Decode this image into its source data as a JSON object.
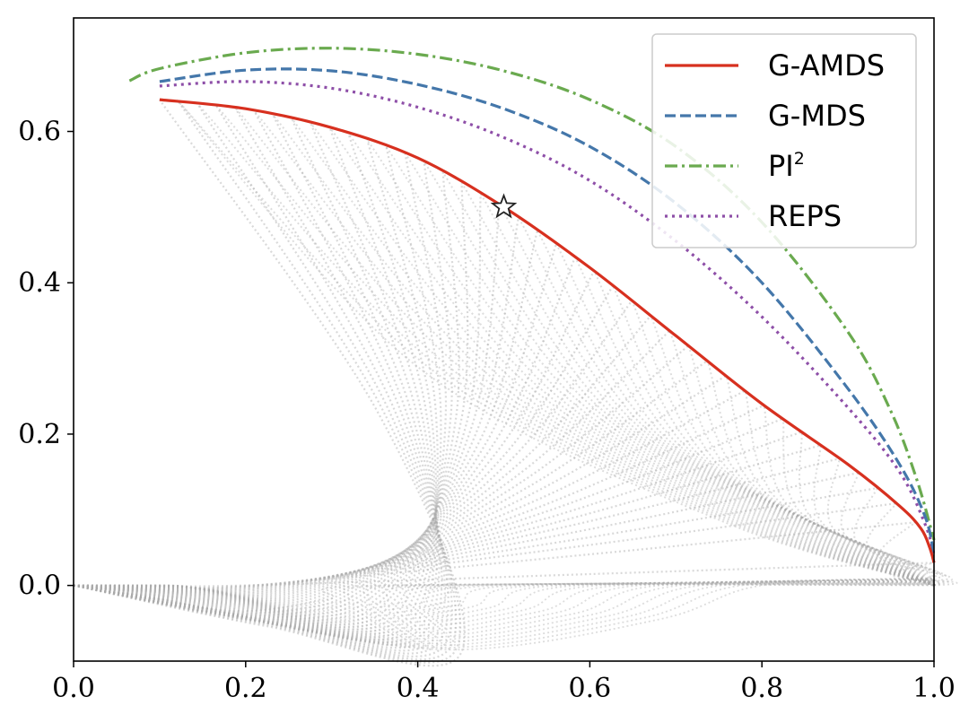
{
  "chart_data": {
    "type": "line",
    "title": "",
    "xlabel": "",
    "ylabel": "",
    "xlim": [
      0.0,
      1.0
    ],
    "ylim": [
      -0.1,
      0.75
    ],
    "x_ticks": [
      "0.0",
      "0.2",
      "0.4",
      "0.6",
      "0.8",
      "1.0"
    ],
    "y_ticks": [
      "0.0",
      "0.2",
      "0.4",
      "0.6"
    ],
    "grid": false,
    "legend_position": "top-right",
    "legend": [
      "G-AMDS",
      "G-MDS",
      "PI",
      "REPS"
    ],
    "legend_superscripts": [
      "",
      "",
      "2",
      ""
    ],
    "series": [
      {
        "name": "G-AMDS",
        "color": "#d7301f",
        "style": "solid",
        "points": [
          [
            0.1,
            0.642
          ],
          [
            0.2,
            0.63
          ],
          [
            0.3,
            0.605
          ],
          [
            0.4,
            0.565
          ],
          [
            0.5,
            0.5
          ],
          [
            0.6,
            0.42
          ],
          [
            0.7,
            0.33
          ],
          [
            0.8,
            0.24
          ],
          [
            0.9,
            0.16
          ],
          [
            0.96,
            0.105
          ],
          [
            0.985,
            0.075
          ],
          [
            0.995,
            0.05
          ],
          [
            1.0,
            0.03
          ]
        ]
      },
      {
        "name": "G-MDS",
        "color": "#4477aa",
        "style": "dashed",
        "points": [
          [
            0.1,
            0.666
          ],
          [
            0.2,
            0.681
          ],
          [
            0.3,
            0.68
          ],
          [
            0.4,
            0.662
          ],
          [
            0.5,
            0.63
          ],
          [
            0.6,
            0.58
          ],
          [
            0.7,
            0.505
          ],
          [
            0.8,
            0.4
          ],
          [
            0.9,
            0.26
          ],
          [
            0.96,
            0.16
          ],
          [
            0.99,
            0.09
          ],
          [
            1.0,
            0.04
          ]
        ]
      },
      {
        "name": "PI",
        "color": "#6aaa4f",
        "style": "dashdot",
        "points": [
          [
            0.065,
            0.667
          ],
          [
            0.1,
            0.683
          ],
          [
            0.2,
            0.704
          ],
          [
            0.3,
            0.71
          ],
          [
            0.4,
            0.702
          ],
          [
            0.5,
            0.68
          ],
          [
            0.6,
            0.642
          ],
          [
            0.7,
            0.58
          ],
          [
            0.8,
            0.48
          ],
          [
            0.9,
            0.335
          ],
          [
            0.95,
            0.23
          ],
          [
            0.98,
            0.14
          ],
          [
            1.0,
            0.06
          ]
        ]
      },
      {
        "name": "REPS",
        "color": "#8e4fa8",
        "style": "dotted",
        "points": [
          [
            0.1,
            0.66
          ],
          [
            0.2,
            0.666
          ],
          [
            0.3,
            0.657
          ],
          [
            0.4,
            0.632
          ],
          [
            0.5,
            0.592
          ],
          [
            0.6,
            0.535
          ],
          [
            0.7,
            0.455
          ],
          [
            0.8,
            0.355
          ],
          [
            0.9,
            0.235
          ],
          [
            0.96,
            0.15
          ],
          [
            0.99,
            0.08
          ],
          [
            1.0,
            0.04
          ]
        ]
      }
    ],
    "star_marker": {
      "x": 0.5,
      "y": 0.5
    },
    "background_family": {
      "color": "#aaaaaa",
      "count": 42,
      "description_points": "grey dotted trajectories from (0,0) and (1,0) forming a crescent between y=-0.09 and the G-AMDS curve"
    }
  }
}
